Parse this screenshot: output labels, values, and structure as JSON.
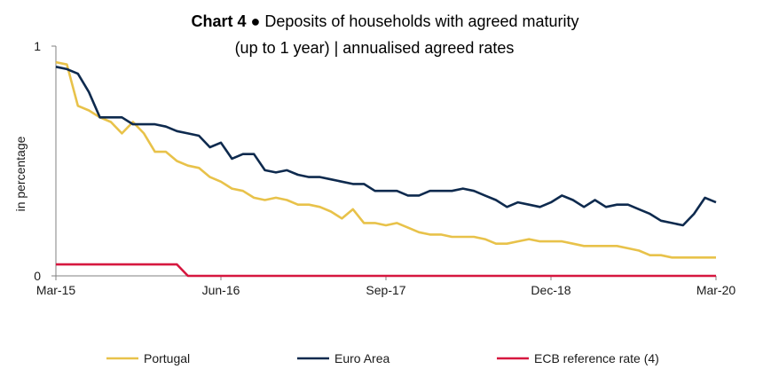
{
  "chart_data": {
    "type": "line",
    "title_prefix": "Chart 4",
    "title_main": " ● Deposits of households with agreed maturity",
    "subtitle": "(up to 1 year) | annualised agreed rates",
    "ylabel": "in percentage",
    "xlabel": "",
    "ylim": [
      0,
      1
    ],
    "y_ticks": [
      "0",
      "1"
    ],
    "x_tick_labels": [
      "Mar-15",
      "Jun-16",
      "Sep-17",
      "Dec-18",
      "Mar-20"
    ],
    "x": [
      "Mar-15",
      "Apr-15",
      "May-15",
      "Jun-15",
      "Jul-15",
      "Aug-15",
      "Sep-15",
      "Oct-15",
      "Nov-15",
      "Dec-15",
      "Jan-16",
      "Feb-16",
      "Mar-16",
      "Apr-16",
      "May-16",
      "Jun-16",
      "Jul-16",
      "Aug-16",
      "Sep-16",
      "Oct-16",
      "Nov-16",
      "Dec-16",
      "Jan-17",
      "Feb-17",
      "Mar-17",
      "Apr-17",
      "May-17",
      "Jun-17",
      "Jul-17",
      "Aug-17",
      "Sep-17",
      "Oct-17",
      "Nov-17",
      "Dec-17",
      "Jan-18",
      "Feb-18",
      "Mar-18",
      "Apr-18",
      "May-18",
      "Jun-18",
      "Jul-18",
      "Aug-18",
      "Sep-18",
      "Oct-18",
      "Nov-18",
      "Dec-18",
      "Jan-19",
      "Feb-19",
      "Mar-19",
      "Apr-19",
      "May-19",
      "Jun-19",
      "Jul-19",
      "Aug-19",
      "Sep-19",
      "Oct-19",
      "Nov-19",
      "Dec-19",
      "Jan-20",
      "Feb-20",
      "Mar-20"
    ],
    "series": [
      {
        "name": "Portugal",
        "color": "#e8c24a",
        "values": [
          0.93,
          0.92,
          0.74,
          0.72,
          0.69,
          0.67,
          0.62,
          0.67,
          0.62,
          0.54,
          0.54,
          0.5,
          0.48,
          0.47,
          0.43,
          0.41,
          0.38,
          0.37,
          0.34,
          0.33,
          0.34,
          0.33,
          0.31,
          0.31,
          0.3,
          0.28,
          0.25,
          0.29,
          0.23,
          0.23,
          0.22,
          0.23,
          0.21,
          0.19,
          0.18,
          0.18,
          0.17,
          0.17,
          0.17,
          0.16,
          0.14,
          0.14,
          0.15,
          0.16,
          0.15,
          0.15,
          0.15,
          0.14,
          0.13,
          0.13,
          0.13,
          0.13,
          0.12,
          0.11,
          0.09,
          0.09,
          0.08,
          0.08,
          0.08,
          0.08,
          0.08
        ]
      },
      {
        "name": "Euro Area",
        "color": "#0e2a4e",
        "values": [
          0.91,
          0.9,
          0.88,
          0.8,
          0.69,
          0.69,
          0.69,
          0.66,
          0.66,
          0.66,
          0.65,
          0.63,
          0.62,
          0.61,
          0.56,
          0.58,
          0.51,
          0.53,
          0.53,
          0.46,
          0.45,
          0.46,
          0.44,
          0.43,
          0.43,
          0.42,
          0.41,
          0.4,
          0.4,
          0.37,
          0.37,
          0.37,
          0.35,
          0.35,
          0.37,
          0.37,
          0.37,
          0.38,
          0.37,
          0.35,
          0.33,
          0.3,
          0.32,
          0.31,
          0.3,
          0.32,
          0.35,
          0.33,
          0.3,
          0.33,
          0.3,
          0.31,
          0.31,
          0.29,
          0.27,
          0.24,
          0.23,
          0.22,
          0.27,
          0.34,
          0.32
        ]
      },
      {
        "name": "ECB reference rate (4)",
        "color": "#d6173f",
        "values": [
          0.05,
          0.05,
          0.05,
          0.05,
          0.05,
          0.05,
          0.05,
          0.05,
          0.05,
          0.05,
          0.05,
          0.05,
          0.0,
          0.0,
          0.0,
          0.0,
          0.0,
          0.0,
          0.0,
          0.0,
          0.0,
          0.0,
          0.0,
          0.0,
          0.0,
          0.0,
          0.0,
          0.0,
          0.0,
          0.0,
          0.0,
          0.0,
          0.0,
          0.0,
          0.0,
          0.0,
          0.0,
          0.0,
          0.0,
          0.0,
          0.0,
          0.0,
          0.0,
          0.0,
          0.0,
          0.0,
          0.0,
          0.0,
          0.0,
          0.0,
          0.0,
          0.0,
          0.0,
          0.0,
          0.0,
          0.0,
          0.0,
          0.0,
          0.0,
          0.0,
          0.0
        ]
      }
    ],
    "grid": false,
    "legend_position": "bottom"
  }
}
